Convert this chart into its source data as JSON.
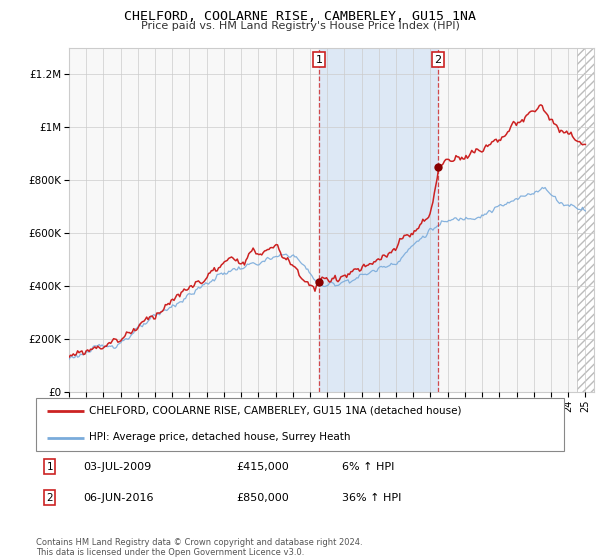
{
  "title": "CHELFORD, COOLARNE RISE, CAMBERLEY, GU15 1NA",
  "subtitle": "Price paid vs. HM Land Registry's House Price Index (HPI)",
  "xlim_start": 1995.0,
  "xlim_end": 2025.5,
  "ylim": [
    0,
    1300000
  ],
  "yticks": [
    0,
    200000,
    400000,
    600000,
    800000,
    1000000,
    1200000
  ],
  "ytick_labels": [
    "£0",
    "£200K",
    "£400K",
    "£600K",
    "£800K",
    "£1M",
    "£1.2M"
  ],
  "xtick_years": [
    1995,
    1996,
    1997,
    1998,
    1999,
    2000,
    2001,
    2002,
    2003,
    2004,
    2005,
    2006,
    2007,
    2008,
    2009,
    2010,
    2011,
    2012,
    2013,
    2014,
    2015,
    2016,
    2017,
    2018,
    2019,
    2020,
    2021,
    2022,
    2023,
    2024,
    2025
  ],
  "transaction1_x": 2009.53,
  "transaction1_y": 415000,
  "transaction2_x": 2016.43,
  "transaction2_y": 850000,
  "transaction1_date": "03-JUL-2009",
  "transaction1_price": "£415,000",
  "transaction1_hpi": "6% ↑ HPI",
  "transaction2_date": "06-JUN-2016",
  "transaction2_price": "£850,000",
  "transaction2_hpi": "36% ↑ HPI",
  "line1_color": "#cc2222",
  "line2_color": "#7aabdb",
  "shade_color": "#dde8f5",
  "grid_color": "#cccccc",
  "bg_color": "#f8f8f8",
  "hatch_start": 2024.5,
  "legend1_label": "CHELFORD, COOLARNE RISE, CAMBERLEY, GU15 1NA (detached house)",
  "legend2_label": "HPI: Average price, detached house, Surrey Heath",
  "footer": "Contains HM Land Registry data © Crown copyright and database right 2024.\nThis data is licensed under the Open Government Licence v3.0."
}
